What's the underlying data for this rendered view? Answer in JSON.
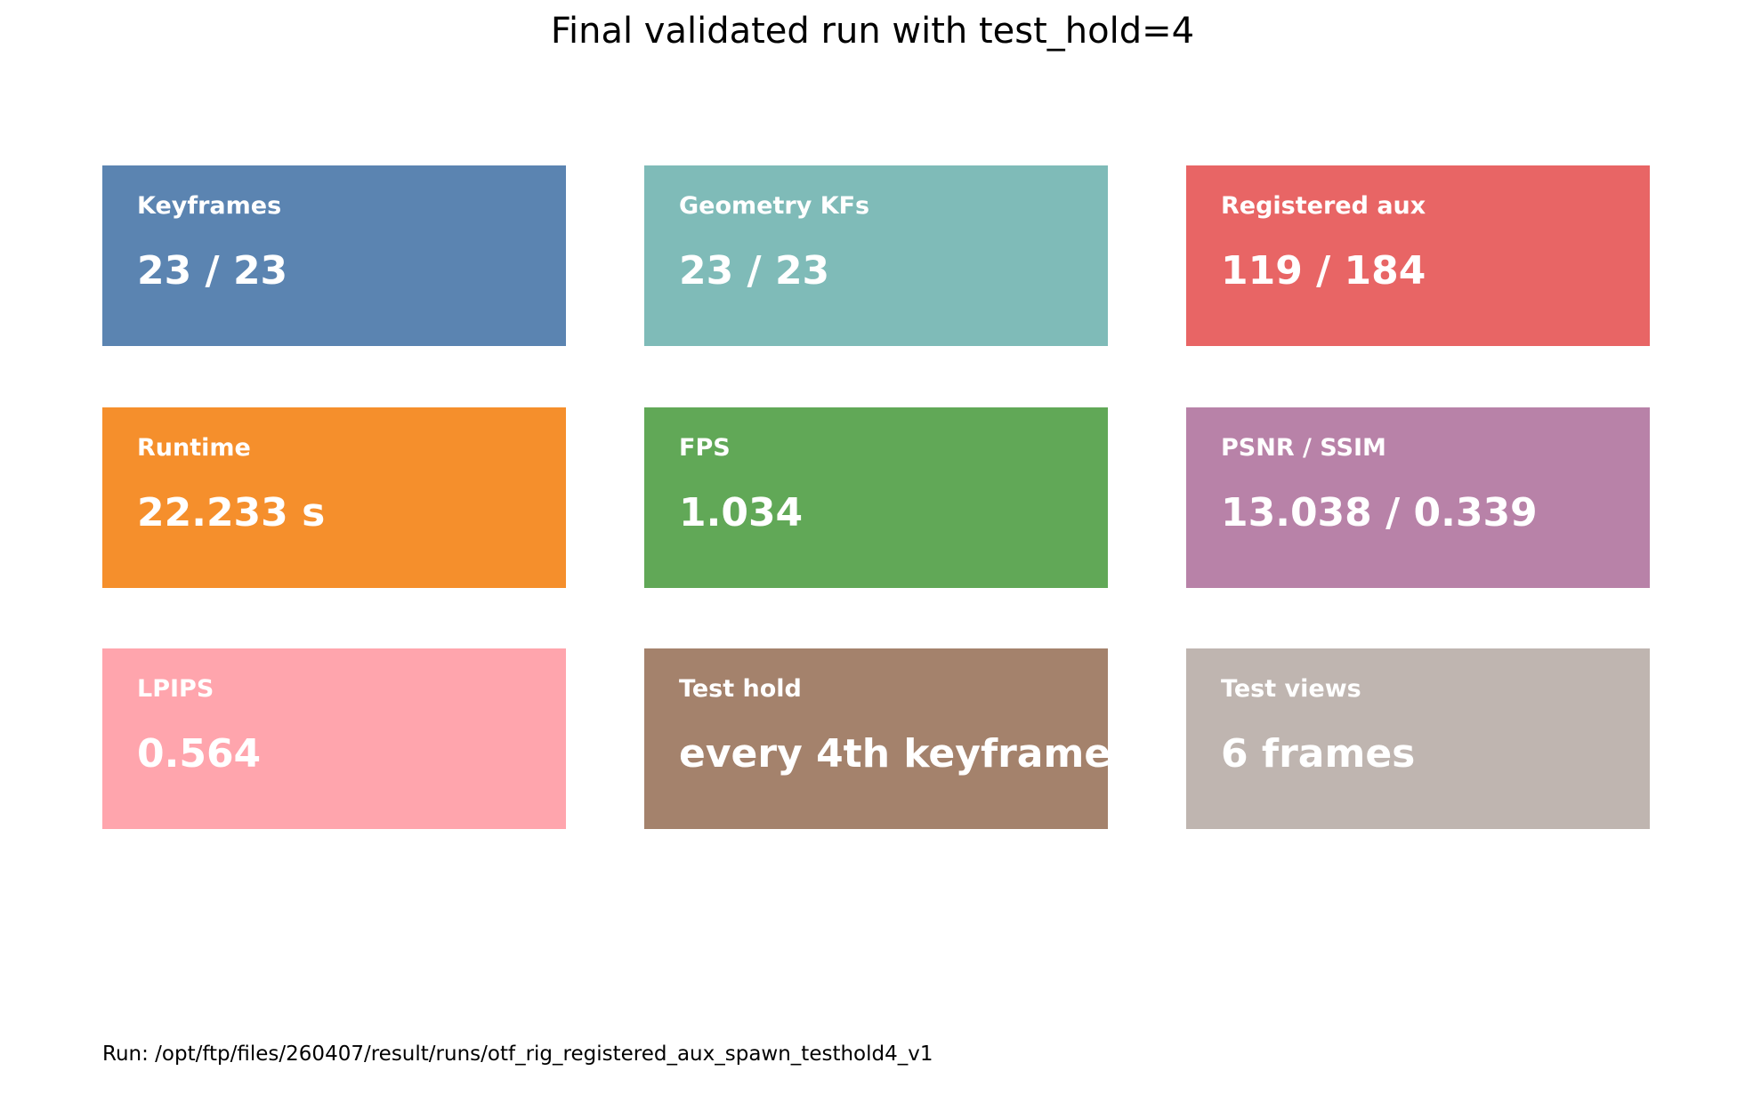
{
  "chart_data": {
    "type": "table",
    "title": "Final validated run with test_hold=4",
    "cards": [
      {
        "label": "Keyframes",
        "value": "23 / 23",
        "color": "#5b84b1"
      },
      {
        "label": "Geometry KFs",
        "value": "23 / 23",
        "color": "#7fbbb8"
      },
      {
        "label": "Registered aux",
        "value": "119 / 184",
        "color": "#e86565"
      },
      {
        "label": "Runtime",
        "value": "22.233 s",
        "color": "#f58f2c"
      },
      {
        "label": "FPS",
        "value": "1.034",
        "color": "#61a857"
      },
      {
        "label": "PSNR / SSIM",
        "value": "13.038 / 0.339",
        "color": "#b882a8"
      },
      {
        "label": "LPIPS",
        "value": "0.564",
        "color": "#ffa5ad"
      },
      {
        "label": "Test hold",
        "value": "every 4th keyframe",
        "color": "#a4826c"
      },
      {
        "label": "Test views",
        "value": "6 frames",
        "color": "#bfb5b0"
      }
    ],
    "footer": "Run: /opt/ftp/files/260407/result/runs/otf_rig_registered_aux_spawn_testhold4_v1"
  }
}
